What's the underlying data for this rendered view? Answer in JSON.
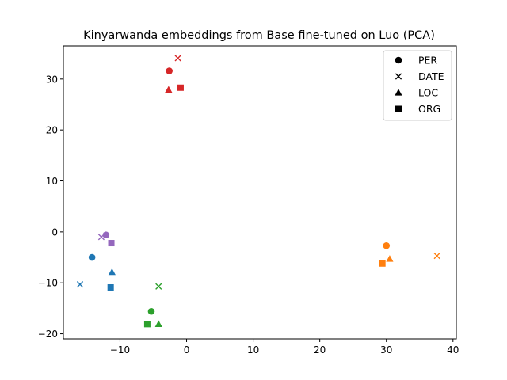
{
  "chart_data": {
    "type": "scatter",
    "title": "Kinyarwanda embeddings from Base fine-tuned on Luo (PCA)",
    "xlabel": "",
    "ylabel": "",
    "xlim": [
      -18.5,
      40.5
    ],
    "ylim": [
      -21,
      36.5
    ],
    "xticks": [
      -10,
      0,
      10,
      20,
      30,
      40
    ],
    "yticks": [
      -20,
      -10,
      0,
      10,
      20,
      30
    ],
    "grid": false,
    "legend_position": "top-right",
    "legend": [
      {
        "label": "PER",
        "marker": "circle"
      },
      {
        "label": "DATE",
        "marker": "x"
      },
      {
        "label": "LOC",
        "marker": "triangle"
      },
      {
        "label": "ORG",
        "marker": "square"
      }
    ],
    "groups": [
      {
        "color": "#1f77b4",
        "points": [
          {
            "marker": "circle",
            "x": -14.2,
            "y": -5.0
          },
          {
            "marker": "x",
            "x": -16.0,
            "y": -10.3
          },
          {
            "marker": "triangle",
            "x": -11.2,
            "y": -7.9
          },
          {
            "marker": "square",
            "x": -11.4,
            "y": -10.9
          }
        ]
      },
      {
        "color": "#ff7f0e",
        "points": [
          {
            "marker": "circle",
            "x": 30.0,
            "y": -2.7
          },
          {
            "marker": "x",
            "x": 37.6,
            "y": -4.7
          },
          {
            "marker": "triangle",
            "x": 30.5,
            "y": -5.3
          },
          {
            "marker": "square",
            "x": 29.4,
            "y": -6.2
          }
        ]
      },
      {
        "color": "#2ca02c",
        "points": [
          {
            "marker": "circle",
            "x": -5.3,
            "y": -15.6
          },
          {
            "marker": "x",
            "x": -4.2,
            "y": -10.7
          },
          {
            "marker": "triangle",
            "x": -4.2,
            "y": -18.1
          },
          {
            "marker": "square",
            "x": -5.9,
            "y": -18.1
          }
        ]
      },
      {
        "color": "#d62728",
        "points": [
          {
            "marker": "circle",
            "x": -2.6,
            "y": 31.6
          },
          {
            "marker": "x",
            "x": -1.3,
            "y": 34.1
          },
          {
            "marker": "triangle",
            "x": -2.7,
            "y": 27.9
          },
          {
            "marker": "square",
            "x": -0.9,
            "y": 28.3
          }
        ]
      },
      {
        "color": "#9467bd",
        "points": [
          {
            "marker": "circle",
            "x": -12.1,
            "y": -0.6
          },
          {
            "marker": "x",
            "x": -12.8,
            "y": -1.0
          },
          {
            "marker": "square",
            "x": -11.3,
            "y": -2.2
          }
        ]
      }
    ]
  }
}
